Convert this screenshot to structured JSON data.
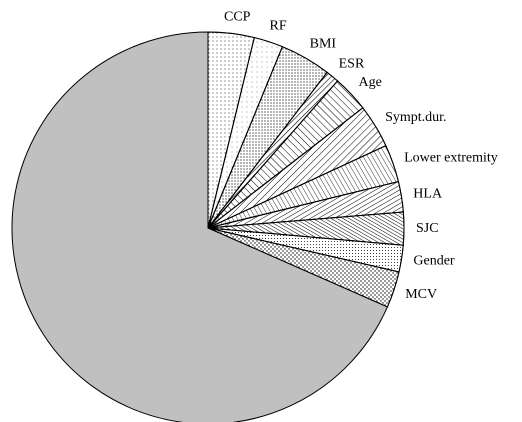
{
  "chart_data": {
    "type": "pie",
    "categories": [
      "CCP",
      "RF",
      "BMI",
      "ESR",
      "Age",
      "Sympt.dur.",
      "Lower extremity",
      "HLA",
      "SJC",
      "Gender",
      "MCV",
      null
    ],
    "values": [
      3.8,
      2.4,
      4.2,
      1.1,
      3.0,
      3.6,
      3.1,
      2.5,
      2.7,
      2.2,
      3.0,
      68.4
    ],
    "colors": [
      "#ffffff",
      "#ffffff",
      "#ffffff",
      "#ffffff",
      "#ffffff",
      "#ffffff",
      "#ffffff",
      "#ffffff",
      "#ffffff",
      "#ffffff",
      "#ffffff",
      "#c0c0c0"
    ]
  }
}
